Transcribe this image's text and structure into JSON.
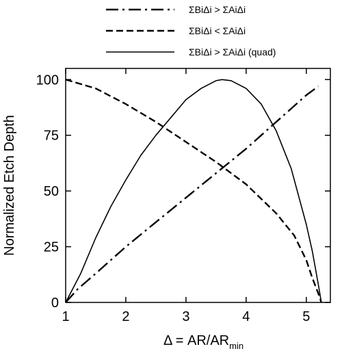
{
  "chart_data": {
    "type": "line",
    "xlabel": "Δ = AR/AR",
    "xlabel_sub": "min",
    "ylabel": "Normalized Etch Depth",
    "xlim": [
      1,
      5.4
    ],
    "ylim": [
      0,
      105
    ],
    "xticks": [
      "1",
      "2",
      "3",
      "4",
      "5"
    ],
    "yticks": [
      "0",
      "25",
      "50",
      "75",
      "100"
    ],
    "grid": false,
    "legend_position": "top",
    "series": [
      {
        "name": "ΣBiΔi > ΣAiΔi",
        "style": "dash-dot",
        "x": [
          1.0,
          1.2,
          1.5,
          2.0,
          2.5,
          3.0,
          3.5,
          4.0,
          4.5,
          5.0,
          5.2
        ],
        "y": [
          0,
          6,
          13,
          25,
          36,
          47,
          58,
          69,
          81,
          93,
          97
        ]
      },
      {
        "name": "ΣBiΔi < ΣAiΔi",
        "style": "dashed",
        "x": [
          1.0,
          1.5,
          2.0,
          2.5,
          3.0,
          3.5,
          4.0,
          4.5,
          4.8,
          5.0,
          5.1,
          5.2,
          5.25
        ],
        "y": [
          100,
          96,
          89,
          81,
          72,
          63,
          53,
          40,
          30,
          19,
          11,
          4,
          0
        ]
      },
      {
        "name": "ΣBiΔi > ΣAiΔi (quad)",
        "style": "solid",
        "x": [
          1.0,
          1.25,
          1.5,
          1.75,
          2.0,
          2.25,
          2.5,
          2.75,
          3.0,
          3.25,
          3.5,
          3.6,
          3.75,
          4.0,
          4.25,
          4.5,
          4.75,
          5.0,
          5.1,
          5.2,
          5.25
        ],
        "y": [
          0,
          13,
          29,
          43,
          55,
          66,
          75,
          83,
          91,
          96,
          99.5,
          100,
          99.5,
          96,
          89,
          77,
          60,
          35,
          23,
          8,
          0
        ]
      }
    ]
  }
}
